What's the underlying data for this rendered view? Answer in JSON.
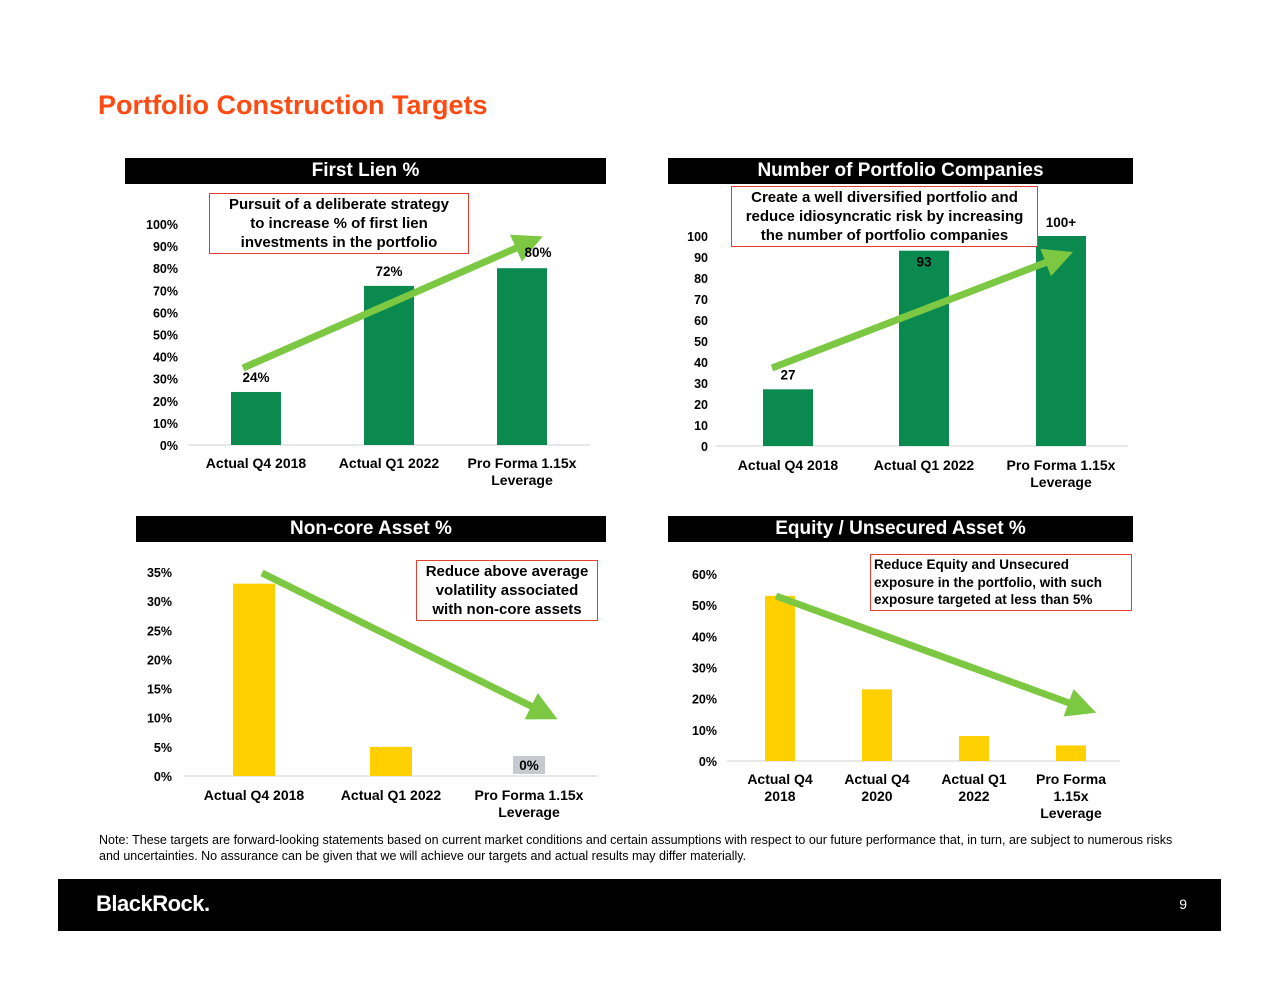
{
  "page": {
    "title": "Portfolio Construction Targets",
    "note": "Note: These targets are forward-looking statements based on current market conditions and certain assumptions with respect to our future performance that, in turn, are subject to numerous risks and uncertainties. No assurance can be given that we will achieve our targets and actual results may differ materially.",
    "logo": "BlackRock.",
    "page_number": "9"
  },
  "colors": {
    "title": "#ff4a12",
    "bar_green": "#0a8a4e",
    "bar_yellow": "#ffd000",
    "arrow": "#7dc842",
    "callout_border": "#e2402c",
    "header_bg": "#000000",
    "zero_label_bg": "#c8c8d0"
  },
  "chart_data": [
    {
      "type": "bar",
      "title": "First Lien %",
      "categories": [
        "Actual Q4 2018",
        "Actual Q1 2022",
        "Pro Forma 1.15x Leverage"
      ],
      "values": [
        24,
        72,
        80
      ],
      "value_labels": [
        "24%",
        "72%",
        "80%"
      ],
      "ylim": [
        0,
        100
      ],
      "yticks": [
        "0%",
        "10%",
        "20%",
        "30%",
        "40%",
        "50%",
        "60%",
        "70%",
        "80%",
        "90%",
        "100%"
      ],
      "callout": "Pursuit of a deliberate strategy\nto increase % of first lien\ninvestments in the portfolio",
      "trend": "up",
      "color": "#0a8a4e"
    },
    {
      "type": "bar",
      "title": "Number of Portfolio Companies",
      "categories": [
        "Actual Q4 2018",
        "Actual Q1 2022",
        "Pro Forma 1.15x Leverage"
      ],
      "values": [
        27,
        93,
        100
      ],
      "value_labels": [
        "27",
        "93",
        "100+"
      ],
      "ylim": [
        0,
        100
      ],
      "yticks": [
        "0",
        "10",
        "20",
        "30",
        "40",
        "50",
        "60",
        "70",
        "80",
        "90",
        "100"
      ],
      "callout": "Create a well diversified portfolio and\nreduce idiosyncratic risk by increasing\nthe number of portfolio companies",
      "trend": "up",
      "color": "#0a8a4e"
    },
    {
      "type": "bar",
      "title": "Non-core Asset %",
      "categories": [
        "Actual Q4 2018",
        "Actual Q1 2022",
        "Pro Forma 1.15x Leverage"
      ],
      "values": [
        33,
        5,
        0
      ],
      "value_labels": [
        "",
        "",
        "0%"
      ],
      "ylim": [
        0,
        35
      ],
      "yticks": [
        "0%",
        "5%",
        "10%",
        "15%",
        "20%",
        "25%",
        "30%",
        "35%"
      ],
      "callout": "Reduce above average\nvolatility associated\nwith non-core assets",
      "trend": "down",
      "color": "#ffd000"
    },
    {
      "type": "bar",
      "title": "Equity / Unsecured Asset %",
      "categories": [
        "Actual Q4 2018",
        "Actual Q4 2020",
        "Actual Q1 2022",
        "Pro Forma 1.15x Leverage"
      ],
      "values": [
        53,
        23,
        8,
        5
      ],
      "value_labels": [
        "",
        "",
        "",
        ""
      ],
      "ylim": [
        0,
        60
      ],
      "yticks": [
        "0%",
        "10%",
        "20%",
        "30%",
        "40%",
        "50%",
        "60%"
      ],
      "callout": "Reduce Equity and Unsecured\nexposure in the portfolio, with such\nexposure targeted at less than 5%",
      "trend": "down",
      "color": "#ffd000"
    }
  ]
}
